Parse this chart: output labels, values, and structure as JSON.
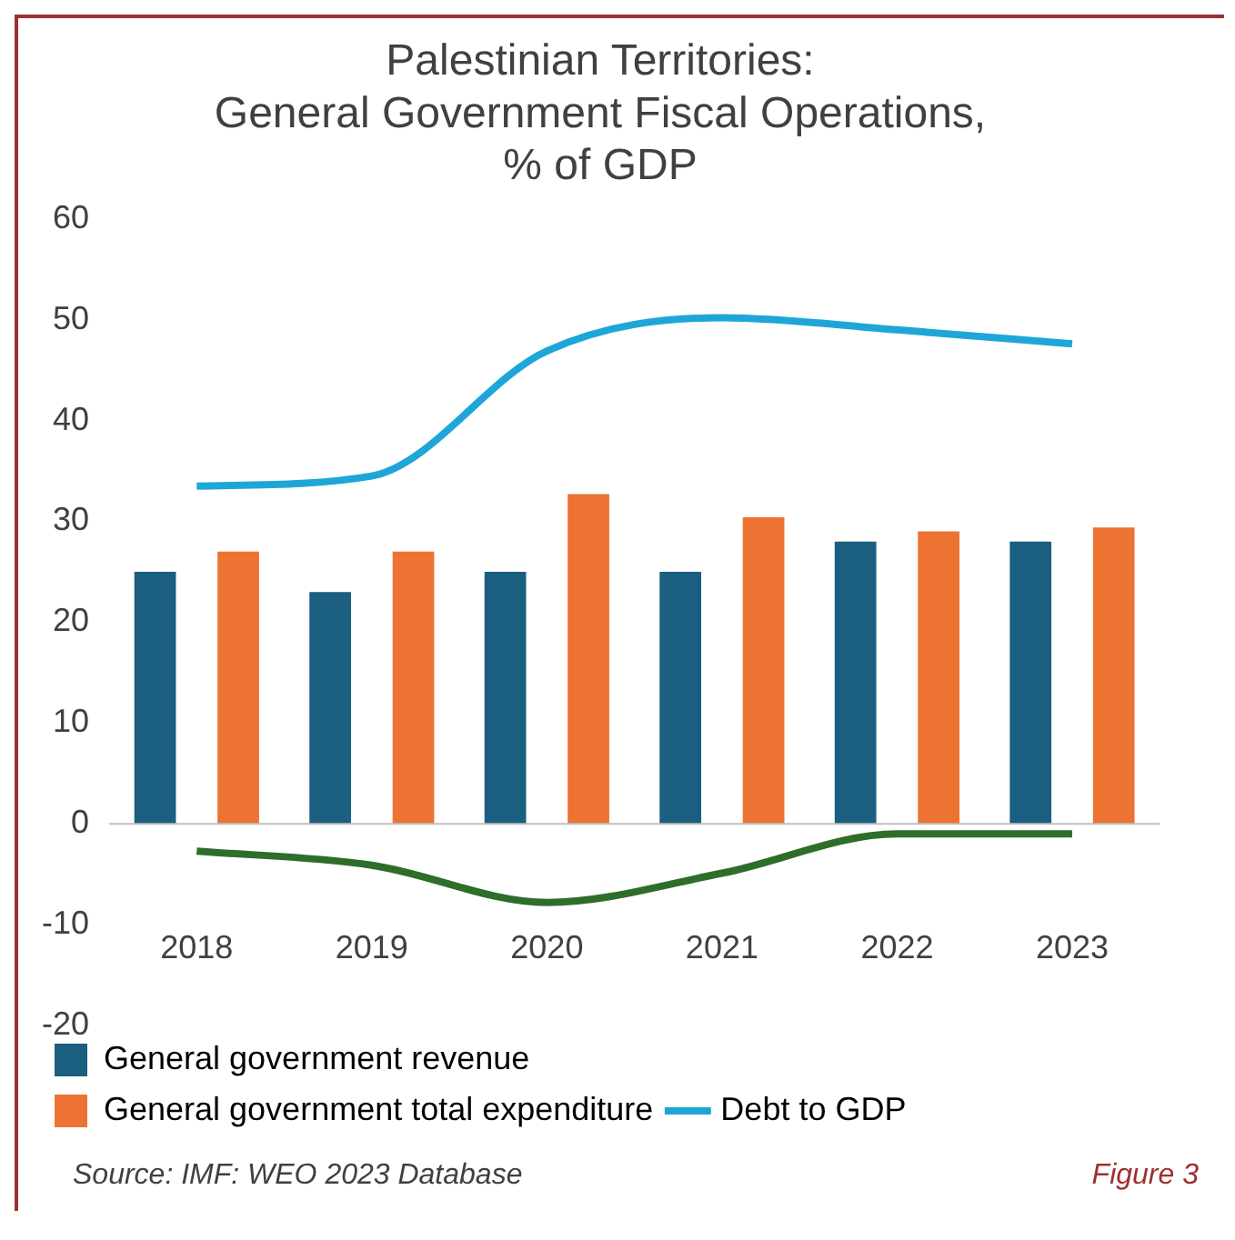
{
  "chart_data": {
    "type": "bar",
    "title": "Palestinian Territories:\nGeneral Government Fiscal Operations,\n% of GDP",
    "categories": [
      "2018",
      "2019",
      "2020",
      "2021",
      "2022",
      "2023"
    ],
    "series": [
      {
        "name": "General government revenue",
        "color": "#1a5e80",
        "values": [
          25,
          23,
          25,
          25,
          28,
          28
        ]
      },
      {
        "name": "General government total expenditure",
        "color": "#ed7332",
        "values": [
          27,
          27,
          32.7,
          30.4,
          29,
          29.4
        ]
      },
      {
        "name": "Debt to GDP",
        "type": "line",
        "color": "#1ea6d8",
        "values": [
          33.5,
          34.5,
          46.9,
          50.2,
          49,
          47.6
        ]
      },
      {
        "type": "line",
        "color": "#2d6e2a",
        "values": [
          -2.7,
          -4.1,
          -7.8,
          -4.9,
          -1,
          -1
        ]
      }
    ],
    "ylim": [
      -20,
      60
    ],
    "yticks": [
      -20,
      -10,
      0,
      10,
      20,
      30,
      40,
      50,
      60
    ],
    "grid": false,
    "ref_lines": [
      {
        "axis": "y",
        "value": 0,
        "color": "#bfbfbf"
      }
    ],
    "legend": "bottom",
    "marker": "none",
    "annotations": [
      "Source: IMF: WEO 2023 Database",
      "Figure 3"
    ]
  }
}
